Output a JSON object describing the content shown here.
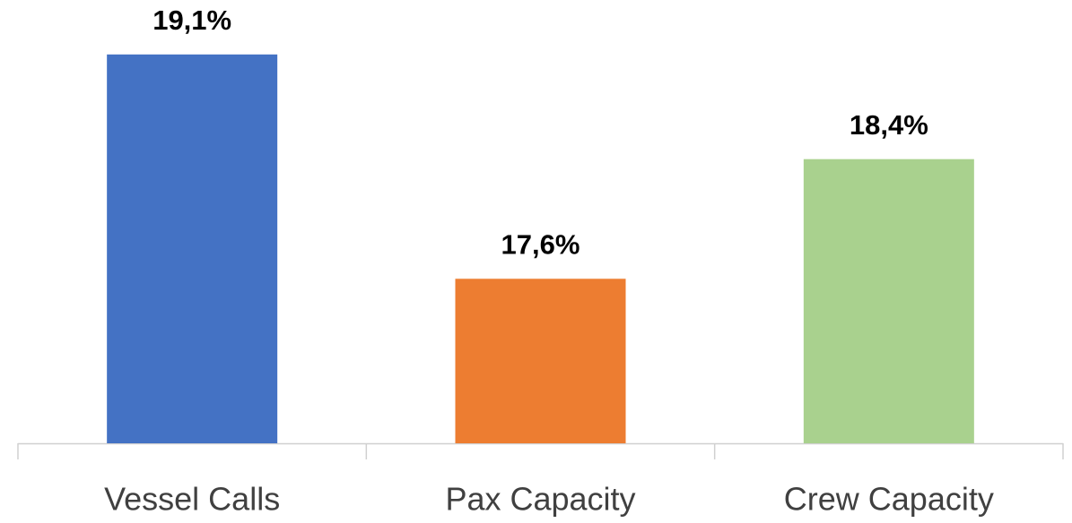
{
  "chart_data": {
    "type": "bar",
    "categories": [
      "Vessel Calls",
      "Pax Capacity",
      "Crew Capacity"
    ],
    "values": [
      19.1,
      17.6,
      18.4
    ],
    "value_labels": [
      "19,1%",
      "17,6%",
      "18,4%"
    ],
    "colors": [
      "#4472c4",
      "#ed7d31",
      "#a9d18e"
    ],
    "ylim": [
      16.5,
      19.5
    ]
  }
}
